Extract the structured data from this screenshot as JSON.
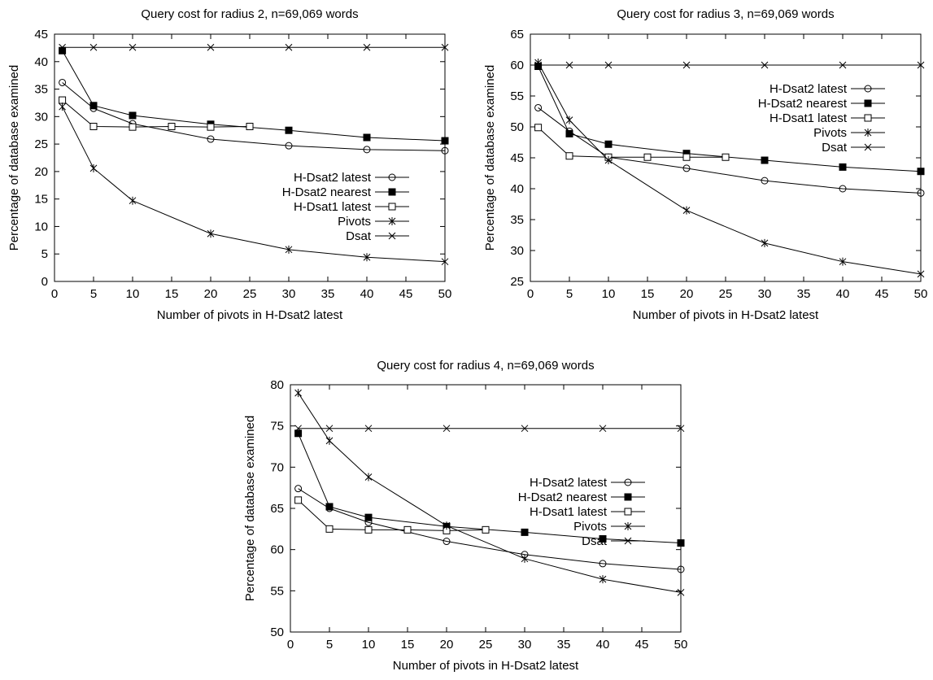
{
  "chart_data": [
    {
      "type": "line",
      "title": "Query cost for radius 2, n=69,069 words",
      "xlabel": "Number of pivots in H-Dsat2 latest",
      "ylabel": "Percentage of database examined",
      "xlim": [
        0,
        50
      ],
      "ylim": [
        0,
        45
      ],
      "xticks": [
        0,
        5,
        10,
        15,
        20,
        25,
        30,
        35,
        40,
        45,
        50
      ],
      "yticks": [
        0,
        5,
        10,
        15,
        20,
        25,
        30,
        35,
        40,
        45
      ],
      "legend_position": "right-middle",
      "grid": false,
      "series": [
        {
          "name": "H-Dsat2 latest",
          "marker": "circle",
          "x": [
            1,
            5,
            10,
            20,
            30,
            40,
            50
          ],
          "y": [
            36.2,
            31.5,
            28.7,
            25.9,
            24.7,
            24.0,
            23.8
          ]
        },
        {
          "name": "H-Dsat2 nearest",
          "marker": "filled-square",
          "x": [
            1,
            5,
            10,
            20,
            30,
            40,
            50
          ],
          "y": [
            42.0,
            32.0,
            30.2,
            28.6,
            27.5,
            26.2,
            25.6
          ]
        },
        {
          "name": "H-Dsat1 latest",
          "marker": "square",
          "x": [
            1,
            5,
            10,
            15,
            20,
            25
          ],
          "y": [
            33.0,
            28.2,
            28.1,
            28.2,
            28.1,
            28.2
          ]
        },
        {
          "name": "Pivots",
          "marker": "star",
          "x": [
            1,
            5,
            10,
            20,
            30,
            40,
            50
          ],
          "y": [
            31.8,
            20.6,
            14.7,
            8.7,
            5.8,
            4.4,
            3.6
          ]
        },
        {
          "name": "Dsat",
          "marker": "x",
          "x": [
            1,
            5,
            10,
            20,
            30,
            40,
            50
          ],
          "y": [
            42.6,
            42.6,
            42.6,
            42.6,
            42.6,
            42.6,
            42.6
          ]
        }
      ]
    },
    {
      "type": "line",
      "title": "Query cost for radius 3, n=69,069 words",
      "xlabel": "Number of pivots in H-Dsat2 latest",
      "ylabel": "Percentage of database examined",
      "xlim": [
        0,
        50
      ],
      "ylim": [
        25,
        65
      ],
      "xticks": [
        0,
        5,
        10,
        15,
        20,
        25,
        30,
        35,
        40,
        45,
        50
      ],
      "yticks": [
        25,
        30,
        35,
        40,
        45,
        50,
        55,
        60,
        65
      ],
      "legend_position": "top-right",
      "grid": false,
      "series": [
        {
          "name": "H-Dsat2 latest",
          "marker": "circle",
          "x": [
            1,
            5,
            10,
            20,
            30,
            40,
            50
          ],
          "y": [
            53.1,
            49.3,
            45.1,
            43.3,
            41.3,
            40.0,
            39.3
          ]
        },
        {
          "name": "H-Dsat2 nearest",
          "marker": "filled-square",
          "x": [
            1,
            5,
            10,
            20,
            30,
            40,
            50
          ],
          "y": [
            59.8,
            48.9,
            47.2,
            45.7,
            44.6,
            43.5,
            42.8
          ]
        },
        {
          "name": "H-Dsat1 latest",
          "marker": "square",
          "x": [
            1,
            5,
            10,
            15,
            20,
            25
          ],
          "y": [
            49.9,
            45.3,
            45.1,
            45.1,
            45.1,
            45.1
          ]
        },
        {
          "name": "Pivots",
          "marker": "star",
          "x": [
            1,
            5,
            10,
            20,
            30,
            40,
            50
          ],
          "y": [
            60.4,
            51.1,
            44.6,
            36.5,
            31.2,
            28.2,
            26.2
          ]
        },
        {
          "name": "Dsat",
          "marker": "x",
          "x": [
            1,
            5,
            10,
            20,
            30,
            40,
            50
          ],
          "y": [
            60.0,
            60.0,
            60.0,
            60.0,
            60.0,
            60.0,
            60.0
          ]
        }
      ]
    },
    {
      "type": "line",
      "title": "Query cost for radius 4, n=69,069 words",
      "xlabel": "Number of pivots in H-Dsat2 latest",
      "ylabel": "Percentage of database examined",
      "xlim": [
        0,
        50
      ],
      "ylim": [
        50,
        80
      ],
      "xticks": [
        0,
        5,
        10,
        15,
        20,
        25,
        30,
        35,
        40,
        45,
        50
      ],
      "yticks": [
        50,
        55,
        60,
        65,
        70,
        75,
        80
      ],
      "legend_position": "right-middle",
      "grid": false,
      "series": [
        {
          "name": "H-Dsat2 latest",
          "marker": "circle",
          "x": [
            1,
            5,
            10,
            20,
            30,
            40,
            50
          ],
          "y": [
            67.4,
            65.0,
            63.3,
            61.0,
            59.4,
            58.3,
            57.6
          ]
        },
        {
          "name": "H-Dsat2 nearest",
          "marker": "filled-square",
          "x": [
            1,
            5,
            10,
            20,
            30,
            40,
            50
          ],
          "y": [
            74.1,
            65.2,
            63.9,
            62.8,
            62.1,
            61.3,
            60.8
          ]
        },
        {
          "name": "H-Dsat1 latest",
          "marker": "square",
          "x": [
            1,
            5,
            10,
            15,
            20,
            25
          ],
          "y": [
            66.0,
            62.5,
            62.4,
            62.4,
            62.3,
            62.4
          ]
        },
        {
          "name": "Pivots",
          "marker": "star",
          "x": [
            1,
            5,
            10,
            20,
            30,
            40,
            50
          ],
          "y": [
            79.0,
            73.2,
            68.8,
            62.9,
            58.9,
            56.4,
            54.8
          ]
        },
        {
          "name": "Dsat",
          "marker": "x",
          "x": [
            1,
            5,
            10,
            20,
            30,
            40,
            50
          ],
          "y": [
            74.7,
            74.7,
            74.7,
            74.7,
            74.7,
            74.7,
            74.7
          ]
        }
      ]
    }
  ]
}
